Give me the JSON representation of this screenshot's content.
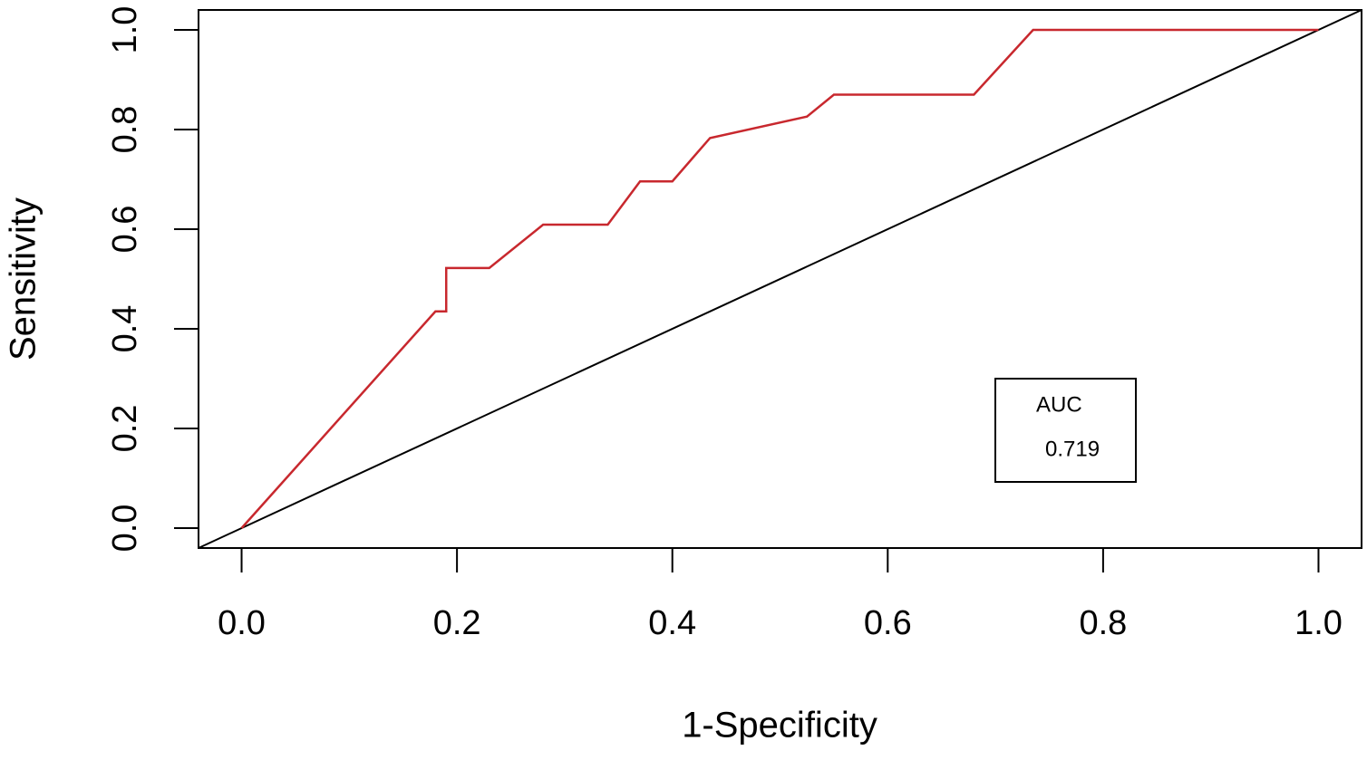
{
  "chart_data": {
    "type": "line",
    "x_label": "1-Specificity",
    "y_label": "Sensitivity",
    "x": [
      0,
      0.18,
      0.19,
      0.19,
      0.23,
      0.28,
      0.34,
      0.37,
      0.4,
      0.435,
      0.525,
      0.55,
      0.68,
      0.735,
      1.0
    ],
    "series": [
      {
        "color": "#c8282e",
        "values": [
          0,
          0.435,
          0.435,
          0.522,
          0.522,
          0.609,
          0.609,
          0.696,
          0.696,
          0.783,
          0.826,
          0.87,
          0.87,
          1.0,
          1.0
        ]
      }
    ],
    "xlim": [
      -0.04,
      1.04
    ],
    "ylim": [
      -0.04,
      1.04
    ],
    "xticks": [
      {
        "value": 0,
        "label": "0.0"
      },
      {
        "value": 0.2,
        "label": "0.2"
      },
      {
        "value": 0.4,
        "label": "0.4"
      },
      {
        "value": 0.6,
        "label": "0.6"
      },
      {
        "value": 0.8,
        "label": "0.8"
      },
      {
        "value": 1,
        "label": "1.0"
      }
    ],
    "yticks": [
      {
        "value": 0,
        "label": "0.0"
      },
      {
        "value": 0.2,
        "label": "0.2"
      },
      {
        "value": 0.4,
        "label": "0.4"
      },
      {
        "value": 0.6,
        "label": "0.6"
      },
      {
        "value": 0.8,
        "label": "0.8"
      },
      {
        "value": 1,
        "label": "1.0"
      }
    ],
    "legend_title": "AUC",
    "auc": 0.719
  }
}
